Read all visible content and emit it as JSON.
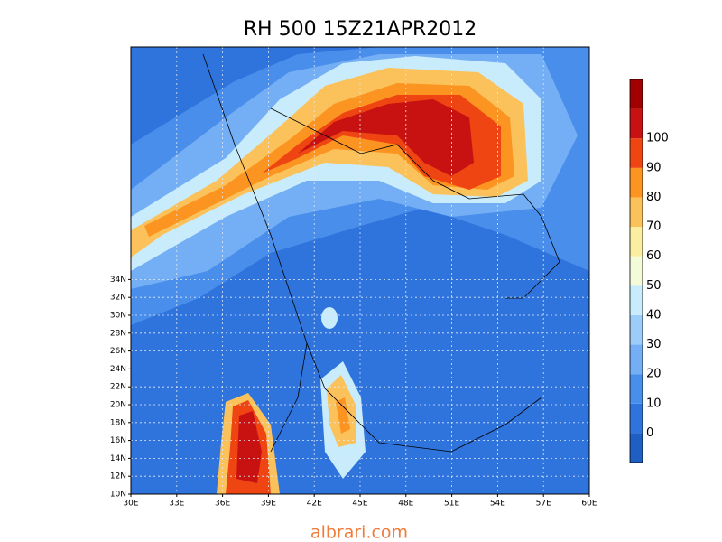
{
  "map": {
    "title": "RH 500 15Z21APR2012",
    "xticks": [
      "30E",
      "33E",
      "36E",
      "39E",
      "42E",
      "45E",
      "48E",
      "51E",
      "54E",
      "57E",
      "60E"
    ],
    "yticks": [
      "10N",
      "12N",
      "14N",
      "16N",
      "18N",
      "20N",
      "22N",
      "24N",
      "26N",
      "28N",
      "30N",
      "32N",
      "34N"
    ],
    "grid": true
  },
  "colorbar": {
    "labels": [
      "0",
      "10",
      "20",
      "30",
      "40",
      "50",
      "60",
      "70",
      "80",
      "90",
      "100"
    ],
    "colors": [
      "#1f5fc4",
      "#2f74dc",
      "#4a8eec",
      "#74aef4",
      "#9ccdf9",
      "#c9ecfc",
      "#f4fbd8",
      "#fbeea0",
      "#fbc15a",
      "#fb9420",
      "#ee4512",
      "#c81212",
      "#a00000"
    ]
  },
  "watermark": "albrari.com"
}
